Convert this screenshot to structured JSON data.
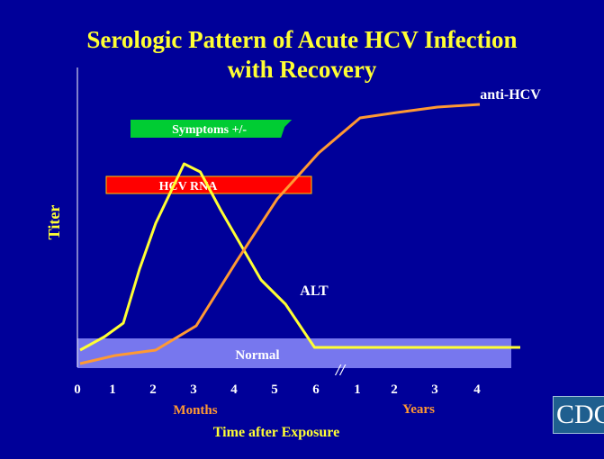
{
  "slide": {
    "title_line1": "Serologic Pattern of Acute HCV Infection",
    "title_line2": "with Recovery",
    "logo_text": "CDC"
  },
  "colors": {
    "background": "#000099",
    "title": "#ffff33",
    "alt_line": "#ffff33",
    "anti_hcv_line": "#ff9933",
    "normal_band": "#7777ee",
    "symptoms_bar": "#00cc33",
    "hcv_rna_bar": "#ff0000",
    "axis_text": "#ffffff",
    "months_label": "#ff9933",
    "years_label": "#ff9933",
    "axis_title": "#ffff33"
  },
  "chart_data": {
    "type": "line",
    "ylabel": "Titer",
    "xlabel": "Time after Exposure",
    "x_segments": [
      {
        "label": "Months",
        "ticks": [
          "0",
          "1",
          "2",
          "3",
          "4",
          "5",
          "6"
        ]
      },
      {
        "label": "Years",
        "ticks": [
          "1",
          "2",
          "3",
          "4"
        ]
      }
    ],
    "axis_break": "//",
    "x_domain": [
      0,
      11
    ],
    "y_domain": [
      0,
      100
    ],
    "grid": false,
    "series": [
      {
        "name": "ALT",
        "x": [
          0,
          0.7,
          1.2,
          1.6,
          2.0,
          2.7,
          3.1,
          3.6,
          4.6,
          5.2,
          5.9,
          11
        ],
        "y": [
          4,
          9,
          14,
          34,
          51,
          73,
          70,
          56,
          30,
          21,
          5,
          5
        ]
      },
      {
        "name": "anti-HCV",
        "x": [
          0,
          1.0,
          2.0,
          3.0,
          4.0,
          5.0,
          6.0,
          7.0,
          8.0,
          9.0,
          10.0
        ],
        "y": [
          0,
          3,
          5,
          14,
          38,
          61,
          78,
          91,
          93,
          95,
          96
        ]
      }
    ],
    "bands": [
      {
        "label": "Normal",
        "y_range": [
          0,
          8
        ],
        "x_range": [
          0,
          11.2
        ]
      }
    ],
    "bars": [
      {
        "label": "Symptoms +/-",
        "x_range": [
          1.4,
          5.2
        ],
        "y": 81
      },
      {
        "label": "HCV RNA",
        "x_range": [
          0.8,
          5.9
        ],
        "y": 61
      }
    ]
  }
}
